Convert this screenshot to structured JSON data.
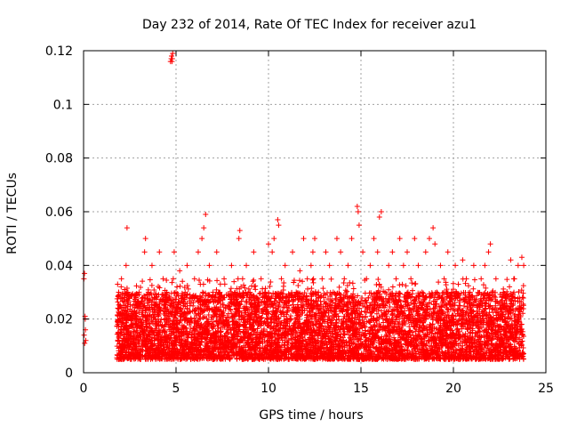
{
  "chart_data": {
    "type": "scatter",
    "title": "Day 232 of 2014, Rate Of TEC Index for receiver azu1",
    "xlabel": "GPS time / hours",
    "ylabel": "ROTI / TECUs",
    "xlim": [
      0,
      25
    ],
    "ylim": [
      0,
      0.12
    ],
    "xticks": [
      0,
      5,
      10,
      15,
      20,
      25
    ],
    "xtick_labels": [
      "0",
      "5",
      "10",
      "15",
      "20",
      "25"
    ],
    "yticks": [
      0,
      0.02,
      0.04,
      0.06,
      0.08,
      0.1,
      0.12
    ],
    "ytick_labels": [
      "0",
      "0.02",
      "0.04",
      "0.06",
      "0.08",
      "0.1",
      "0.12"
    ],
    "grid": true,
    "marker": "+",
    "color": "#ff0000",
    "series": [
      {
        "name": "azu1",
        "x": [
          0.02,
          0.05,
          0.08,
          0.1,
          0.12,
          0.03,
          0.06,
          0.09,
          1.85,
          1.9,
          1.95,
          2.0,
          2.05,
          2.1,
          2.2,
          2.3,
          2.35,
          2.4,
          2.6,
          2.8,
          3.0,
          3.2,
          3.3,
          3.35,
          3.5,
          3.7,
          3.9,
          4.1,
          4.3,
          4.5,
          4.6,
          4.7,
          4.74,
          4.76,
          4.78,
          4.8,
          4.82,
          4.85,
          4.9,
          5.0,
          5.2,
          5.4,
          5.6,
          5.8,
          6.0,
          6.2,
          6.4,
          6.5,
          6.6,
          6.8,
          7.0,
          7.2,
          7.4,
          7.6,
          7.8,
          8.0,
          8.2,
          8.4,
          8.45,
          8.6,
          8.8,
          9.0,
          9.2,
          9.4,
          9.6,
          9.8,
          10.0,
          10.2,
          10.3,
          10.5,
          10.55,
          10.7,
          10.9,
          11.1,
          11.3,
          11.5,
          11.7,
          11.9,
          12.1,
          12.3,
          12.4,
          12.5,
          12.7,
          12.9,
          13.1,
          13.3,
          13.5,
          13.7,
          13.9,
          14.1,
          14.3,
          14.5,
          14.8,
          14.85,
          14.9,
          15.1,
          15.3,
          15.5,
          15.7,
          15.9,
          16.0,
          16.1,
          16.3,
          16.5,
          16.7,
          16.9,
          17.1,
          17.3,
          17.5,
          17.7,
          17.9,
          18.1,
          18.3,
          18.5,
          18.7,
          18.9,
          19.0,
          19.1,
          19.3,
          19.5,
          19.7,
          19.9,
          20.1,
          20.3,
          20.5,
          20.7,
          20.9,
          21.1,
          21.3,
          21.5,
          21.7,
          21.9,
          22.0,
          22.1,
          22.3,
          22.5,
          22.7,
          22.9,
          23.1,
          23.3,
          23.5,
          23.7,
          23.8
        ],
        "y": [
          0.035,
          0.037,
          0.021,
          0.016,
          0.012,
          0.014,
          0.011,
          0.02,
          0.012,
          0.03,
          0.02,
          0.025,
          0.035,
          0.018,
          0.012,
          0.04,
          0.054,
          0.03,
          0.02,
          0.018,
          0.03,
          0.015,
          0.045,
          0.05,
          0.03,
          0.04,
          0.02,
          0.045,
          0.035,
          0.03,
          0.02,
          0.116,
          0.117,
          0.118,
          0.116,
          0.117,
          0.119,
          0.035,
          0.045,
          0.03,
          0.038,
          0.025,
          0.04,
          0.02,
          0.035,
          0.045,
          0.05,
          0.054,
          0.059,
          0.04,
          0.03,
          0.045,
          0.02,
          0.035,
          0.025,
          0.04,
          0.03,
          0.05,
          0.053,
          0.035,
          0.04,
          0.03,
          0.045,
          0.025,
          0.035,
          0.03,
          0.048,
          0.045,
          0.05,
          0.057,
          0.055,
          0.035,
          0.04,
          0.025,
          0.045,
          0.03,
          0.038,
          0.05,
          0.035,
          0.04,
          0.045,
          0.05,
          0.03,
          0.035,
          0.045,
          0.04,
          0.03,
          0.05,
          0.045,
          0.035,
          0.04,
          0.05,
          0.062,
          0.06,
          0.055,
          0.045,
          0.035,
          0.04,
          0.05,
          0.045,
          0.058,
          0.06,
          0.03,
          0.04,
          0.045,
          0.035,
          0.05,
          0.04,
          0.045,
          0.035,
          0.05,
          0.04,
          0.03,
          0.045,
          0.05,
          0.054,
          0.048,
          0.03,
          0.04,
          0.035,
          0.045,
          0.03,
          0.04,
          0.025,
          0.042,
          0.035,
          0.03,
          0.04,
          0.025,
          0.035,
          0.04,
          0.045,
          0.048,
          0.03,
          0.035,
          0.02,
          0.03,
          0.025,
          0.042,
          0.035,
          0.04,
          0.043,
          0.04
        ]
      }
    ],
    "noise_band": {
      "x_start": 1.8,
      "x_end": 23.8,
      "y_floor": 0.005,
      "y_typical_max": 0.03,
      "note": "dense scatter of several thousand ROTI points between ~0.005 and ~0.035 TECUs"
    }
  }
}
